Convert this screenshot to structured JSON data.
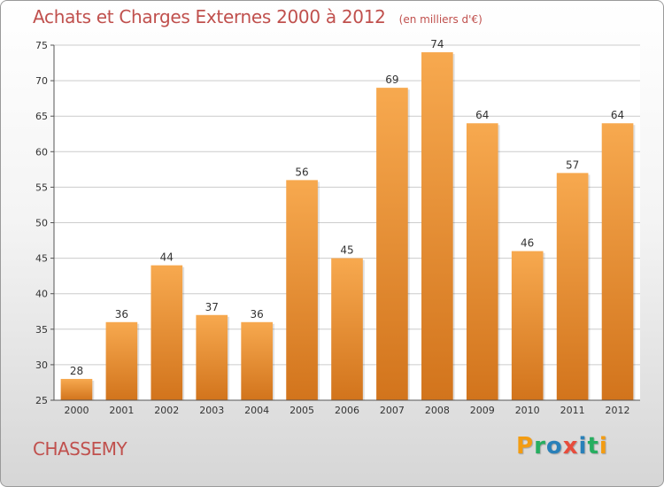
{
  "header": {
    "title": "Achats et Charges Externes 2000 à 2012",
    "unit": "(en milliers d'€)"
  },
  "footer": {
    "city": "CHASSEMY",
    "logo_letters": [
      "P",
      "r",
      "o",
      "x",
      "i",
      "t",
      "i"
    ],
    "logo_colors": [
      "#f39c12",
      "#27ae60",
      "#2980b9",
      "#e74c3c",
      "#2980b9",
      "#27ae60",
      "#f39c12"
    ]
  },
  "colors": {
    "bar_light": "#f7a94f",
    "bar_dark": "#d2741c",
    "title": "#c0504d",
    "grid": "#cccccc"
  },
  "chart_data": {
    "type": "bar",
    "title": "Achats et Charges Externes 2000 à 2012",
    "subtitle": "(en milliers d'€)",
    "xlabel": "",
    "ylabel": "",
    "categories": [
      "2000",
      "2001",
      "2002",
      "2003",
      "2004",
      "2005",
      "2006",
      "2007",
      "2008",
      "2009",
      "2010",
      "2011",
      "2012"
    ],
    "values": [
      28,
      36,
      44,
      37,
      36,
      56,
      45,
      69,
      74,
      64,
      46,
      57,
      64
    ],
    "ylim": [
      25,
      75
    ],
    "yticks": [
      25,
      30,
      35,
      40,
      45,
      50,
      55,
      60,
      65,
      70,
      75
    ],
    "grid": true,
    "legend": "none"
  }
}
